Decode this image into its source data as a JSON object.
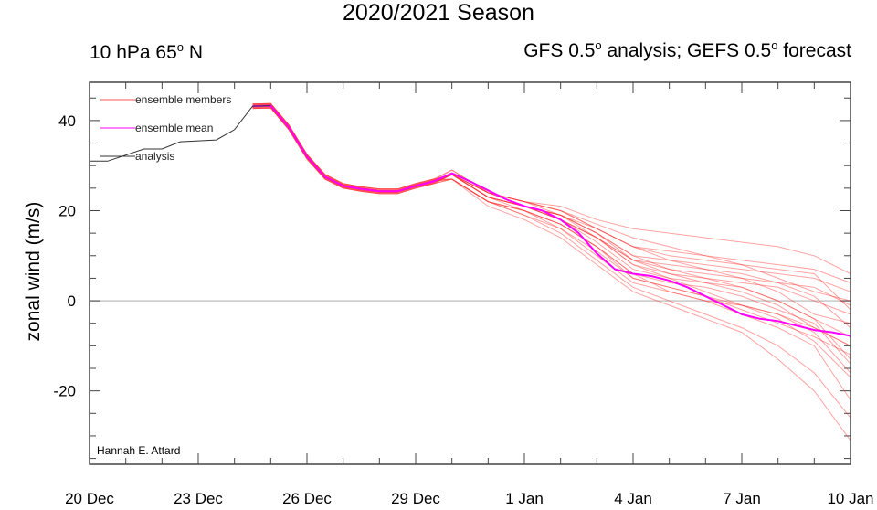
{
  "chart_data": {
    "type": "line",
    "title": "2020/2021 Season",
    "subtitle_left": {
      "text": "10 hPa 65",
      "sup": "o",
      "after": " N"
    },
    "subtitle_right": {
      "parts": [
        "GFS 0.5",
        "o",
        " analysis; GEFS 0.5",
        "o",
        " forecast"
      ]
    },
    "ylabel": "zonal wind (m/s)",
    "xlabel": "",
    "ylim": [
      -36.3,
      48.5
    ],
    "xlim_days": [
      0,
      21
    ],
    "yticks": [
      -20,
      0,
      20,
      40
    ],
    "xticks": [
      {
        "day": 0,
        "label": "20 Dec"
      },
      {
        "day": 3,
        "label": "23 Dec"
      },
      {
        "day": 6,
        "label": "26 Dec"
      },
      {
        "day": 9,
        "label": "29 Dec"
      },
      {
        "day": 12,
        "label": "1 Jan"
      },
      {
        "day": 15,
        "label": "4 Jan"
      },
      {
        "day": 18,
        "label": "7 Jan"
      },
      {
        "day": 21,
        "label": "10 Jan"
      }
    ],
    "legend": {
      "placement": "top-left",
      "entries": [
        {
          "label": "ensemble members",
          "color": "#ff5050"
        },
        {
          "label": "ensemble mean",
          "color": "#ff00ff"
        },
        {
          "label": "analysis",
          "color": "#333333"
        }
      ]
    },
    "credit": "Hannah E. Attard",
    "analysis": {
      "x": [
        0,
        0.5,
        1.5,
        2,
        2.5,
        3.5,
        4,
        4.5,
        5
      ],
      "y": [
        31,
        31,
        33.7,
        33.7,
        35.3,
        35.7,
        38,
        43.2,
        43.3
      ]
    },
    "ensemble_shared": {
      "x": [
        4.5,
        5,
        5.5,
        6,
        6.5,
        7,
        7.5,
        8,
        8.5,
        9,
        9.5
      ],
      "y": [
        43.2,
        43.3,
        38.5,
        32,
        27.5,
        25.5,
        24.8,
        24.3,
        24.3,
        25.5,
        26.5
      ]
    },
    "ensemble_members": {
      "x": [
        10,
        11,
        12,
        13,
        14,
        15,
        16,
        17,
        18,
        19,
        20,
        21
      ],
      "members": [
        [
          28,
          24,
          22,
          21,
          18,
          16,
          15,
          14,
          13,
          12,
          10,
          6
        ],
        [
          28,
          23,
          21,
          19,
          15,
          10,
          9,
          8,
          7,
          6,
          5,
          2
        ],
        [
          27,
          22,
          20,
          17,
          12,
          5,
          3,
          1,
          -2,
          -5,
          -8,
          -12
        ],
        [
          28,
          23,
          21,
          18,
          14,
          8,
          5,
          2,
          -1,
          -3,
          -6,
          -10
        ],
        [
          29,
          24,
          22,
          20,
          16,
          12,
          10,
          9,
          8,
          7,
          6,
          -2
        ],
        [
          27,
          22,
          19,
          15,
          9,
          3,
          0,
          -3,
          -6,
          -10,
          -16,
          -26
        ],
        [
          28,
          23,
          21,
          19,
          16,
          12,
          11,
          10,
          9,
          8,
          7,
          4
        ],
        [
          28,
          24,
          21,
          19,
          15,
          9,
          7,
          5,
          3,
          0,
          -4,
          -8
        ],
        [
          27,
          22,
          20,
          17,
          12,
          6,
          4,
          3,
          1,
          -2,
          -5,
          -14
        ],
        [
          28,
          23,
          21,
          19,
          15,
          10,
          7,
          6,
          5,
          2,
          -3,
          -5
        ],
        [
          27,
          21,
          18,
          14,
          8,
          2,
          -1,
          -4,
          -7,
          -13,
          -20,
          -31
        ],
        [
          28,
          24,
          22,
          20,
          16,
          12,
          9,
          7,
          5,
          4,
          3,
          -1
        ],
        [
          28,
          23,
          20,
          17,
          12,
          6,
          2,
          0,
          -1,
          -3,
          -7,
          -16
        ],
        [
          29,
          24,
          22,
          19,
          14,
          8,
          6,
          5,
          4,
          3,
          0,
          -3
        ],
        [
          27,
          22,
          19,
          16,
          10,
          4,
          2,
          0,
          -3,
          -6,
          -10,
          -22
        ],
        [
          28,
          23,
          21,
          18,
          13,
          7,
          5,
          4,
          3,
          0,
          -4,
          -13
        ],
        [
          28,
          24,
          22,
          20,
          17,
          14,
          12,
          10,
          8,
          5,
          2,
          0
        ],
        [
          27,
          22,
          20,
          16,
          11,
          5,
          3,
          1,
          -1,
          -4,
          -9,
          -17
        ],
        [
          28,
          23,
          21,
          18,
          14,
          9,
          8,
          7,
          6,
          4,
          1,
          -6
        ],
        [
          28,
          24,
          21,
          18,
          14,
          9,
          6,
          4,
          2,
          -1,
          -6,
          -10
        ]
      ]
    },
    "ensemble_mean": {
      "x": [
        4.5,
        5,
        5.5,
        6,
        6.5,
        7,
        7.5,
        8,
        8.5,
        9,
        9.5,
        10,
        10.5,
        11,
        11.5,
        12,
        12.5,
        13,
        13.5,
        14,
        14.5,
        15,
        15.5,
        16,
        16.5,
        17,
        17.5,
        18,
        18.5,
        19,
        19.5,
        20,
        20.5,
        21
      ],
      "y": [
        43.2,
        43.3,
        38.5,
        32,
        27.5,
        25.5,
        24.8,
        24.3,
        24.3,
        25.5,
        26.5,
        28.3,
        26.5,
        24.5,
        22.5,
        21,
        20,
        18,
        15,
        10.5,
        7,
        6,
        5.5,
        4.5,
        3,
        1,
        -1,
        -3,
        -4,
        -4.5,
        -5.5,
        -6.5,
        -7,
        -7.8
      ]
    }
  }
}
